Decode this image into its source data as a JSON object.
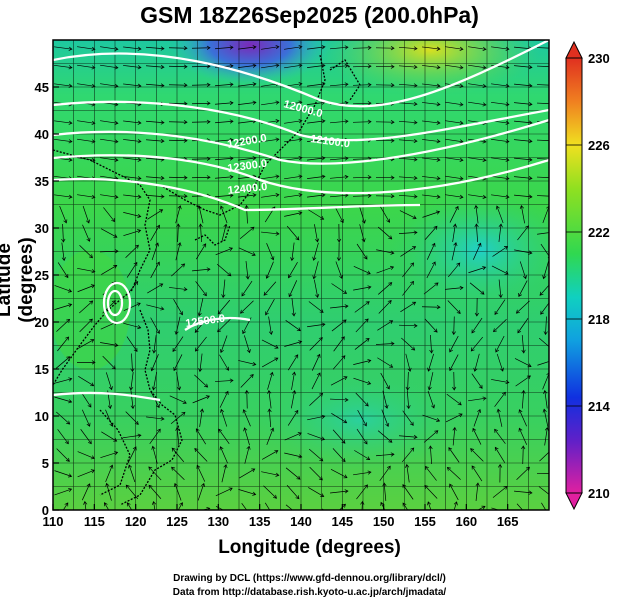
{
  "title": "GSM 18Z26Sep2025 (200.0hPa)",
  "xlabel": "Longitude (degrees)",
  "ylabel": "Latitude  (degrees)",
  "credits": {
    "line1": "Drawing by DCL (https://www.gfd-dennou.org/library/dcl/)",
    "line2": "Data from http://database.rish.kyoto-u.ac.jp/arch/jmadata/"
  },
  "x_ticks": [
    "110",
    "115",
    "120",
    "125",
    "130",
    "135",
    "140",
    "145",
    "150",
    "155",
    "160",
    "165"
  ],
  "y_ticks": [
    "0",
    "5",
    "10",
    "15",
    "20",
    "25",
    "30",
    "35",
    "40",
    "45"
  ],
  "colorbar": {
    "ticks": [
      "210",
      "214",
      "218",
      "222",
      "226",
      "230"
    ],
    "min": 210,
    "max": 230
  },
  "contour_labels": [
    "12000.0",
    "12100.0",
    "12200.0",
    "12300.0",
    "12400.0",
    "12500.0"
  ],
  "map": {
    "lon_range": [
      110,
      170
    ],
    "lat_range": [
      0,
      50
    ],
    "field": "temperature shading with geopotential height contours and wind streamlines"
  }
}
